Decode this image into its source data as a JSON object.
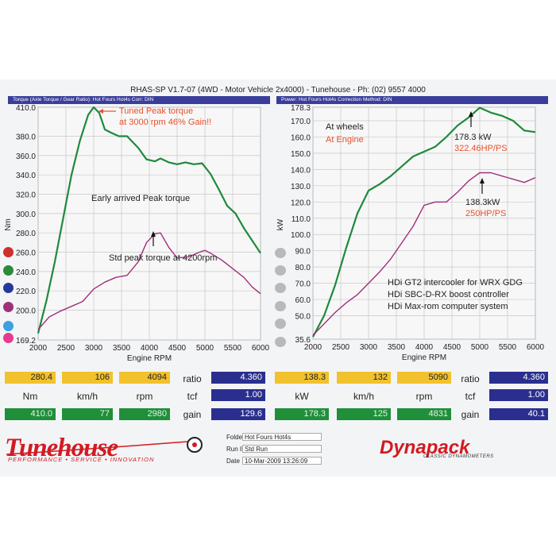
{
  "run_title": "RHAS-SP V1.7-07  (4WD - Motor Vehicle 2x4000) - Tunehouse - Ph: (02) 9557 4000",
  "left_header": "Torque (Axle Torque / Gear Ratio): Hot Fours Hot4s      Corr: DIN",
  "right_header": "Power: Hot Fours Hot4s        Correction Method: DIN",
  "chart_data": [
    {
      "type": "line",
      "xlabel": "Engine RPM",
      "ylabel": "Nm",
      "xlim": [
        2000,
        6000
      ],
      "ylim": [
        169.2,
        410.0
      ],
      "x_ticks": [
        "2000",
        "2500",
        "3000",
        "3500",
        "4000",
        "4500",
        "5000",
        "5500",
        "6000"
      ],
      "y_ticks": [
        "410.0",
        "380.0",
        "360.0",
        "340.0",
        "320.0",
        "300.0",
        "280.0",
        "260.0",
        "240.0",
        "220.0",
        "200.0",
        "169.2"
      ],
      "y_tick_values": [
        410,
        380,
        360,
        340,
        320,
        300,
        280,
        260,
        240,
        220,
        200,
        169.2
      ],
      "grid": true,
      "series": [
        {
          "color": "#1e8a3c",
          "x": [
            2000,
            2150,
            2300,
            2450,
            2600,
            2750,
            2900,
            3000,
            3100,
            3200,
            3300,
            3450,
            3600,
            3800,
            3950,
            4100,
            4200,
            4350,
            4500,
            4650,
            4800,
            4950,
            5100,
            5250,
            5400,
            5550,
            5700,
            5850,
            6000
          ],
          "y": [
            176,
            210,
            250,
            295,
            340,
            375,
            402,
            410,
            404,
            387,
            384,
            380,
            380,
            368,
            356,
            354,
            357,
            353,
            351,
            353,
            351,
            352,
            341,
            325,
            308,
            300,
            285,
            272,
            259
          ]
        },
        {
          "color": "#a0307a",
          "x": [
            2000,
            2200,
            2400,
            2600,
            2800,
            3000,
            3200,
            3400,
            3600,
            3800,
            3950,
            4100,
            4200,
            4350,
            4500,
            4700,
            4900,
            5000,
            5100,
            5300,
            5500,
            5700,
            5850,
            6000
          ],
          "y": [
            180,
            193,
            199,
            204,
            209,
            222,
            229,
            234,
            236,
            250,
            270,
            279,
            280,
            265,
            254,
            255,
            260,
            262,
            259,
            252,
            243,
            234,
            224,
            217
          ]
        }
      ],
      "annotations": [
        {
          "text": "Tuned Peak torque",
          "color": "#e8502a"
        },
        {
          "text": "at 3000 rpm 46% Gain!!",
          "color": "#e8502a"
        },
        {
          "text": "Early arrived Peak torque",
          "color": "#222222"
        },
        {
          "text": "Std peak torque at 4200rpm",
          "color": "#222222"
        }
      ]
    },
    {
      "type": "line",
      "xlabel": "Engine RPM",
      "ylabel": "kW",
      "xlim": [
        2000,
        6000
      ],
      "ylim": [
        35.6,
        178.3
      ],
      "x_ticks": [
        "2000",
        "2500",
        "3000",
        "3500",
        "4000",
        "4500",
        "5000",
        "5500",
        "6000"
      ],
      "y_ticks": [
        "178.3",
        "170.0",
        "160.0",
        "150.0",
        "140.0",
        "130.0",
        "120.0",
        "110.0",
        "100.0",
        "90.0",
        "80.0",
        "70.0",
        "60.0",
        "50.0",
        "35.6"
      ],
      "y_tick_values": [
        178.3,
        170,
        160,
        150,
        140,
        130,
        120,
        110,
        100,
        90,
        80,
        70,
        60,
        50,
        35.6
      ],
      "grid": true,
      "series": [
        {
          "color": "#1e8a3c",
          "x": [
            2000,
            2200,
            2400,
            2600,
            2800,
            3000,
            3200,
            3400,
            3600,
            3800,
            4000,
            4200,
            4400,
            4600,
            4800,
            5000,
            5200,
            5400,
            5600,
            5800,
            6000
          ],
          "y": [
            37,
            50,
            69,
            92,
            113,
            127,
            131,
            136,
            142,
            148,
            151,
            154,
            160,
            167,
            172,
            178,
            175,
            173,
            170,
            164,
            163
          ]
        },
        {
          "color": "#a0307a",
          "x": [
            2000,
            2200,
            2400,
            2600,
            2800,
            3000,
            3200,
            3400,
            3600,
            3800,
            4000,
            4200,
            4400,
            4600,
            4800,
            5000,
            5200,
            5400,
            5600,
            5800,
            6000
          ],
          "y": [
            38,
            45,
            52,
            58,
            63,
            70,
            77,
            85,
            95,
            105,
            118,
            120,
            120,
            126,
            133,
            138,
            138,
            136,
            134,
            132,
            135
          ]
        }
      ],
      "annotations": [
        {
          "text": "At wheels",
          "color": "#222222"
        },
        {
          "text": "At Engine",
          "color": "#e8502a"
        },
        {
          "text": "178.3 kW",
          "color": "#222222"
        },
        {
          "text": "322.46HP/PS",
          "color": "#e8502a"
        },
        {
          "text": "138.3kW",
          "color": "#222222"
        },
        {
          "text": "250HP/PS",
          "color": "#e8502a"
        },
        {
          "text": "HDi GT2 intercooler for WRX GDG",
          "color": "#222222"
        },
        {
          "text": "HDi SBC-D-RX boost controller",
          "color": "#222222"
        },
        {
          "text": "HDi Max-rom computer system",
          "color": "#222222"
        }
      ]
    }
  ],
  "dot_colors": [
    "#d0302a",
    "#2c8a3a",
    "#243a9a",
    "#a0307a",
    "#3aa0e0",
    "#e83a90"
  ],
  "readouts": {
    "left": {
      "row1": [
        "280.4",
        "106",
        "4094"
      ],
      "labels": [
        "Nm",
        "km/h",
        "rpm"
      ],
      "row3": [
        "410.0",
        "77",
        "2980"
      ],
      "ratio_label": "ratio",
      "ratio": "4.360",
      "tcf_label": "tcf",
      "tcf": "1.00",
      "gain_label": "gain",
      "gain": "129.6"
    },
    "right": {
      "row1": [
        "138.3",
        "132",
        "5090"
      ],
      "labels": [
        "kW",
        "km/h",
        "rpm"
      ],
      "row3": [
        "178.3",
        "125",
        "4831"
      ],
      "ratio_label": "ratio",
      "ratio": "4.360",
      "tcf_label": "tcf",
      "tcf": "1.00",
      "gain_label": "gain",
      "gain": "40.1"
    }
  },
  "footer": {
    "brand": "Tunehouse",
    "tagline": "PERFORMANCE • SERVICE • INNOVATION",
    "folder_label": "Folder",
    "folder": "Hot Fours Hot4s",
    "run_id_label": "Run ID",
    "run_id": "Std Run",
    "date_label": "Date",
    "date": "10-Mar-2009  13:26:09",
    "dynapack": "Dynapack",
    "dynapack_sub": "CLASSIC DYNAMOMETERS"
  }
}
